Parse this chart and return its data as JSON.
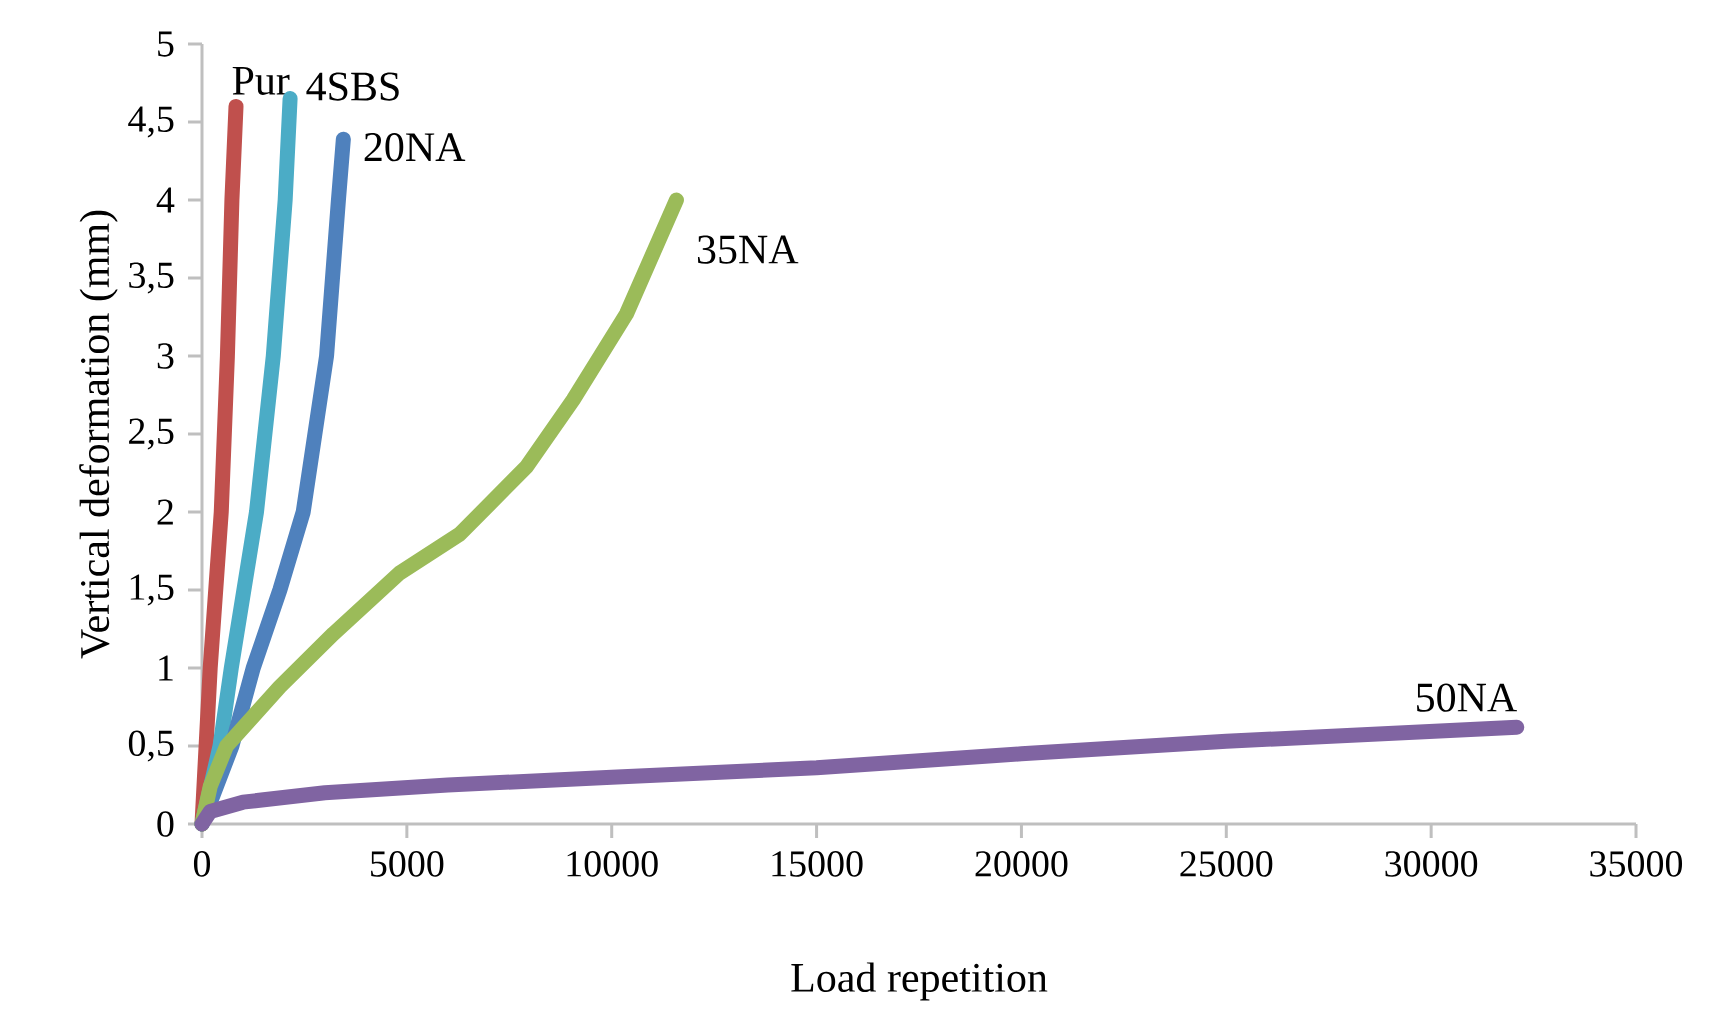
{
  "chart_data": {
    "type": "line",
    "xlabel": "Load repetition",
    "ylabel": "Vertical deformation (mm)",
    "xlim": [
      0,
      35000
    ],
    "xticks": [
      0,
      5000,
      10000,
      15000,
      20000,
      25000,
      30000,
      35000
    ],
    "ylim": [
      0,
      5
    ],
    "yticks": [
      0,
      {
        "value": 0.5,
        "label": "0,5"
      },
      1,
      {
        "value": 1.5,
        "label": "1,5"
      },
      2,
      {
        "value": 2.5,
        "label": "2,5"
      },
      3,
      {
        "value": 3.5,
        "label": "3,5"
      },
      4,
      {
        "value": 4.5,
        "label": "4,5"
      },
      5
    ],
    "grid": false,
    "legend": false,
    "marker": "none",
    "line_style": "solid",
    "series": [
      {
        "name": "Pur",
        "color": "#c0504d",
        "x": [
          0,
          100,
          200,
          470,
          620,
          730,
          830
        ],
        "values": [
          0,
          0.5,
          1,
          2,
          3,
          4,
          4.6
        ]
      },
      {
        "name": "4SBS",
        "color": "#4bacc6",
        "x": [
          0,
          440,
          715,
          1330,
          1740,
          2030,
          2150
        ],
        "values": [
          0,
          0.5,
          1,
          2,
          3,
          4,
          4.65
        ]
      },
      {
        "name": "20NA",
        "color": "#4f81bd",
        "x": [
          0,
          730,
          1250,
          1900,
          2470,
          3040,
          3330,
          3450
        ],
        "values": [
          0,
          0.5,
          1,
          1.5,
          2,
          3,
          4,
          4.39
        ]
      },
      {
        "name": "35NA",
        "color": "#9bbb59",
        "x": [
          0,
          200,
          600,
          1900,
          3210,
          4830,
          6300,
          7920,
          9060,
          10360,
          11580
        ],
        "values": [
          0,
          0.24,
          0.5,
          0.88,
          1.22,
          1.61,
          1.86,
          2.29,
          2.72,
          3.27,
          4.0
        ]
      },
      {
        "name": "50NA",
        "color": "#8064a2",
        "x": [
          0,
          200,
          1000,
          3000,
          6000,
          10000,
          15000,
          20000,
          25000,
          32090
        ],
        "values": [
          0,
          0.08,
          0.14,
          0.2,
          0.25,
          0.3,
          0.36,
          0.45,
          0.53,
          0.62
        ]
      }
    ]
  }
}
